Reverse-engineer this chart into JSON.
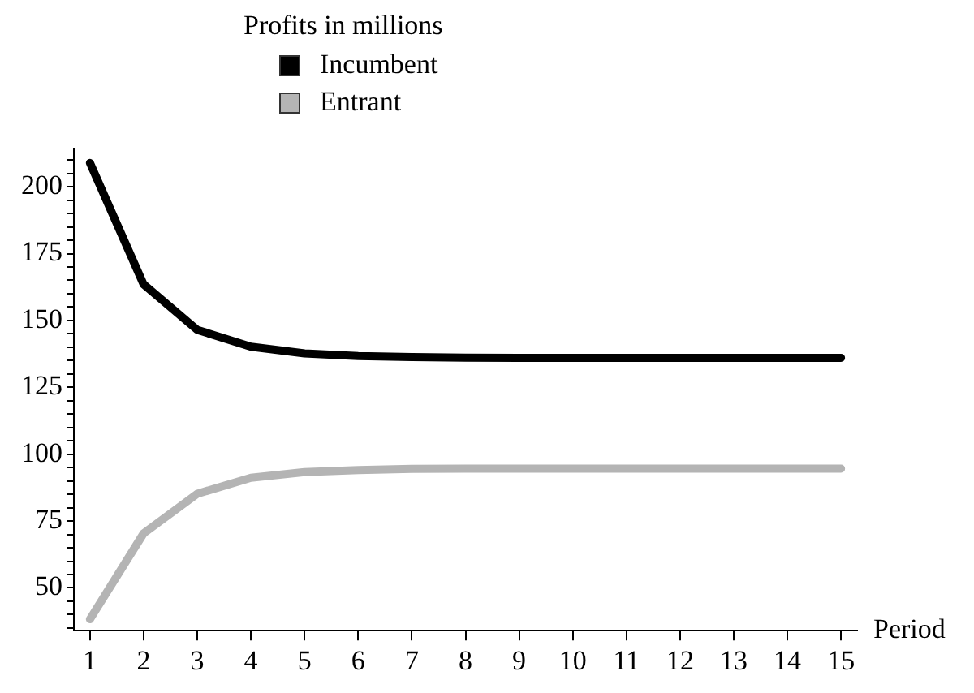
{
  "chart_data": {
    "type": "line",
    "legend_title": "Profits in millions",
    "xlabel": "Period",
    "x": [
      1,
      2,
      3,
      4,
      5,
      6,
      7,
      8,
      9,
      10,
      11,
      12,
      13,
      14,
      15
    ],
    "series": [
      {
        "name": "Incumbent",
        "color": "#000000",
        "values": [
          208.9,
          163.5,
          146.5,
          140.2,
          137.7,
          136.7,
          136.3,
          136.1,
          136,
          136,
          136,
          136,
          136,
          136,
          136
        ]
      },
      {
        "name": "Entrant",
        "color": "#b4b4b4",
        "values": [
          38.3,
          70.4,
          85.2,
          91.2,
          93.3,
          94.1,
          94.5,
          94.6,
          94.6,
          94.6,
          94.6,
          94.6,
          94.6,
          94.6,
          94.6
        ]
      }
    ],
    "xlim": [
      0.7,
      15.3
    ],
    "xticks": [
      1,
      2,
      3,
      4,
      5,
      6,
      7,
      8,
      9,
      10,
      11,
      12,
      13,
      14,
      15
    ],
    "ylim": [
      34,
      214
    ],
    "yticks": [
      {
        "value": 35,
        "label": null
      },
      {
        "value": 40,
        "label": null
      },
      {
        "value": 45,
        "label": null
      },
      50,
      {
        "value": 55,
        "label": null
      },
      {
        "value": 60,
        "label": null
      },
      {
        "value": 65,
        "label": null
      },
      {
        "value": 70,
        "label": null
      },
      75,
      {
        "value": 80,
        "label": null
      },
      {
        "value": 85,
        "label": null
      },
      {
        "value": 90,
        "label": null
      },
      {
        "value": 95,
        "label": null
      },
      100,
      {
        "value": 105,
        "label": null
      },
      {
        "value": 110,
        "label": null
      },
      {
        "value": 115,
        "label": null
      },
      {
        "value": 120,
        "label": null
      },
      125,
      {
        "value": 130,
        "label": null
      },
      {
        "value": 135,
        "label": null
      },
      {
        "value": 140,
        "label": null
      },
      {
        "value": 145,
        "label": null
      },
      150,
      {
        "value": 155,
        "label": null
      },
      {
        "value": 160,
        "label": null
      },
      {
        "value": 165,
        "label": null
      },
      {
        "value": 170,
        "label": null
      },
      175,
      {
        "value": 180,
        "label": null
      },
      {
        "value": 185,
        "label": null
      },
      {
        "value": 190,
        "label": null
      },
      {
        "value": 195,
        "label": null
      },
      200,
      {
        "value": 205,
        "label": null
      },
      {
        "value": 210,
        "label": null
      }
    ],
    "grid": false,
    "legend": "top",
    "marker": "none",
    "line_style": "solid"
  }
}
